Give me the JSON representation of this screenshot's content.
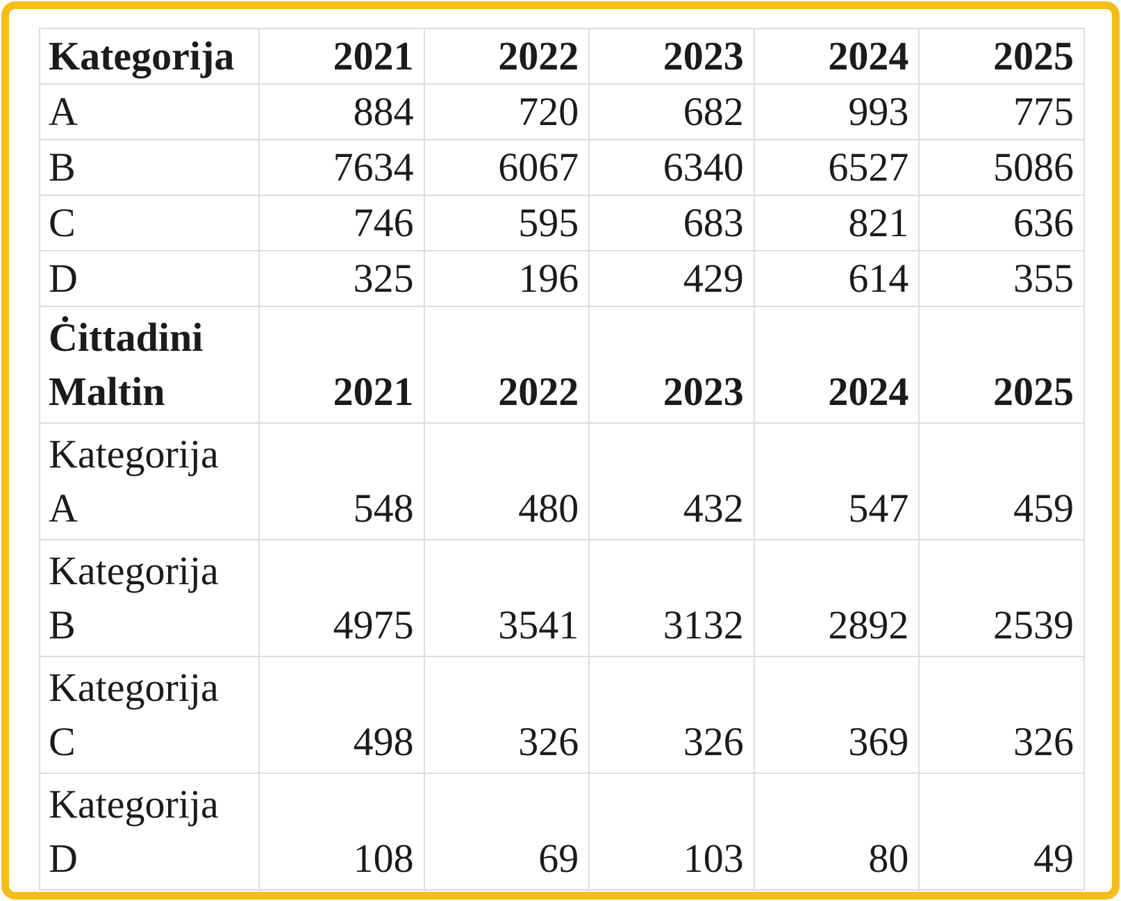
{
  "colors": {
    "frame_border": "#F4BE18",
    "cell_border": "#DCDCDC",
    "text": "#1B1B1B"
  },
  "chart_data": {
    "type": "table",
    "tables": [
      {
        "title": "Kategorija",
        "columns": [
          "Kategorija",
          "2021",
          "2022",
          "2023",
          "2024",
          "2025"
        ],
        "rows": [
          [
            "A",
            "884",
            "720",
            "682",
            "993",
            "775"
          ],
          [
            "B",
            "7634",
            "6067",
            "6340",
            "6527",
            "5086"
          ],
          [
            "C",
            "746",
            "595",
            "683",
            "821",
            "636"
          ],
          [
            "D",
            "325",
            "196",
            "429",
            "614",
            "355"
          ]
        ]
      },
      {
        "title": "Ċittadini Maltin",
        "columns": [
          "Ċittadini Maltin",
          "2021",
          "2022",
          "2023",
          "2024",
          "2025"
        ],
        "rows": [
          [
            "Kategorija A",
            "548",
            "480",
            "432",
            "547",
            "459"
          ],
          [
            "Kategorija B",
            "4975",
            "3541",
            "3132",
            "2892",
            "2539"
          ],
          [
            "Kategorija C",
            "498",
            "326",
            "326",
            "369",
            "326"
          ],
          [
            "Kategorija D",
            "108",
            "69",
            "103",
            "80",
            "49"
          ]
        ]
      }
    ]
  }
}
